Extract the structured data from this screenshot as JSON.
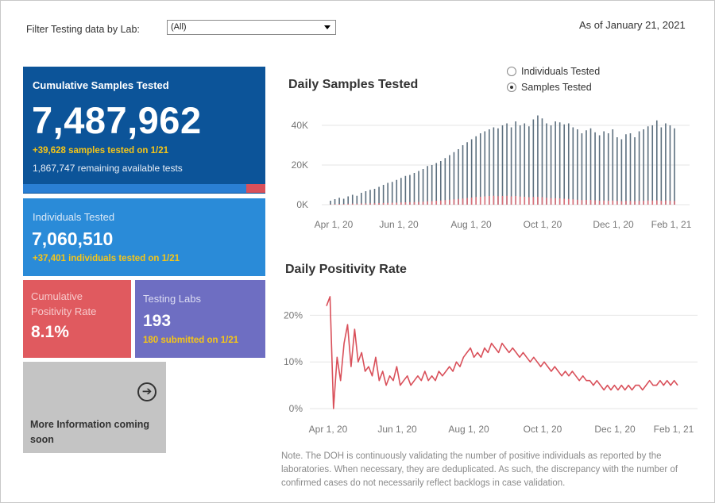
{
  "filter": {
    "label": "Filter Testing data by Lab:",
    "selected": "(All)"
  },
  "as_of": "As of January 21, 2021",
  "kpis": {
    "cumulative": {
      "title": "Cumulative Samples Tested",
      "value": "7,487,962",
      "daily": "+39,628 samples tested on 1/21",
      "remaining": "1,867,747 remaining available tests",
      "remaining_fraction": 0.08
    },
    "individuals": {
      "title": "Individuals Tested",
      "value": "7,060,510",
      "daily": "+37,401  individuals  tested on 1/21"
    },
    "positivity": {
      "title": "Cumulative Positivity Rate",
      "value": "8.1%"
    },
    "labs": {
      "title": "Testing Labs",
      "value": "193",
      "submitted": "180 submitted on 1/21"
    },
    "more": {
      "text": "More Information coming soon",
      "icon": "arrow-right-circle-icon"
    }
  },
  "toggle": {
    "options": [
      "Individuals Tested",
      "Samples Tested"
    ],
    "selected": "Samples Tested"
  },
  "colors": {
    "samples": "#5c6f7e",
    "positives": "#d9707a",
    "positivity": "#d9505a",
    "blue_dark": "#0c5499",
    "blue": "#2a8bd8"
  },
  "chart_data": [
    {
      "type": "bar",
      "title": "Daily Samples Tested",
      "x_ticks": [
        "Apr 1, 20",
        "Jun 1, 20",
        "Aug 1, 20",
        "Oct 1, 20",
        "Dec 1, 20",
        "Feb 1, 21"
      ],
      "y_ticks": [
        "0K",
        "20K",
        "40K"
      ],
      "ylim": [
        0,
        48000
      ],
      "grid": true,
      "series": [
        {
          "values": [
            2000,
            2800,
            3500,
            3000,
            4200,
            5000,
            4500,
            6000,
            6800,
            7500,
            8000,
            9000,
            10000,
            11000,
            11500,
            12500,
            13500,
            14500,
            15000,
            16000,
            17000,
            18000,
            19500,
            20000,
            21000,
            22000,
            23500,
            25000,
            26500,
            28000,
            30000,
            31500,
            33000,
            34500,
            36000,
            37000,
            38000,
            39000,
            38500,
            40000,
            41000,
            39000,
            42000,
            40000,
            41000,
            39500,
            43000,
            45000,
            43500,
            41000,
            40000,
            42000,
            41500,
            40500,
            41000,
            39000,
            38000,
            36000,
            37500,
            38500,
            36500,
            35000,
            37000,
            36000,
            38000,
            34000,
            33000,
            35500,
            36000,
            34000,
            37000,
            38000,
            39500,
            40000,
            42500,
            39000,
            41000,
            40000,
            38500
          ]
        },
        {
          "values": [
            200,
            300,
            400,
            350,
            500,
            550,
            500,
            600,
            650,
            700,
            700,
            800,
            850,
            900,
            950,
            1000,
            1100,
            1200,
            1250,
            1300,
            1400,
            1500,
            1700,
            1800,
            2000,
            2100,
            2300,
            2500,
            2700,
            2900,
            3100,
            3400,
            3600,
            3900,
            4000,
            4200,
            4400,
            4500,
            4300,
            4400,
            4500,
            4200,
            4400,
            4100,
            4000,
            3800,
            3900,
            4000,
            3800,
            3500,
            3300,
            3300,
            3200,
            3000,
            2900,
            2700,
            2500,
            2300,
            2400,
            2400,
            2200,
            2000,
            2100,
            2000,
            2100,
            1900,
            1800,
            1900,
            1900,
            1800,
            1900,
            2000,
            2100,
            2100,
            2200,
            2000,
            2100,
            2000,
            1900
          ]
        }
      ]
    },
    {
      "type": "line",
      "title": "Daily Positivity Rate",
      "x_ticks": [
        "Apr 1, 20",
        "Jun 1, 20",
        "Aug 1, 20",
        "Oct 1, 20",
        "Dec 1, 20",
        "Feb 1, 21"
      ],
      "y_ticks": [
        "0%",
        "10%",
        "20%"
      ],
      "ylim": [
        0,
        25
      ],
      "grid": true,
      "series": [
        {
          "values": [
            22,
            24,
            0,
            11,
            6,
            14,
            18,
            9,
            17,
            10,
            12,
            8,
            9,
            7,
            11,
            6,
            8,
            5,
            7,
            6,
            9,
            5,
            6,
            7,
            5,
            6,
            7,
            6,
            8,
            6,
            7,
            6,
            8,
            7,
            8,
            9,
            8,
            10,
            9,
            11,
            12,
            13,
            11,
            12,
            11,
            13,
            12,
            14,
            13,
            12,
            14,
            13,
            12,
            13,
            12,
            11,
            12,
            11,
            10,
            11,
            10,
            9,
            10,
            9,
            8,
            9,
            8,
            7,
            8,
            7,
            8,
            7,
            6,
            7,
            6,
            6,
            5,
            6,
            5,
            4,
            5,
            4,
            5,
            4,
            5,
            4,
            5,
            4,
            5,
            5,
            4,
            5,
            6,
            5,
            5,
            6,
            5,
            6,
            5,
            6,
            5
          ]
        }
      ]
    }
  ],
  "note": "Note. The DOH is continuously validating the number of positive individuals as reported by the laboratories. When necessary, they are deduplicated. As such, the discrepancy with the number of confirmed cases do not necessarily reflect backlogs in case validation."
}
